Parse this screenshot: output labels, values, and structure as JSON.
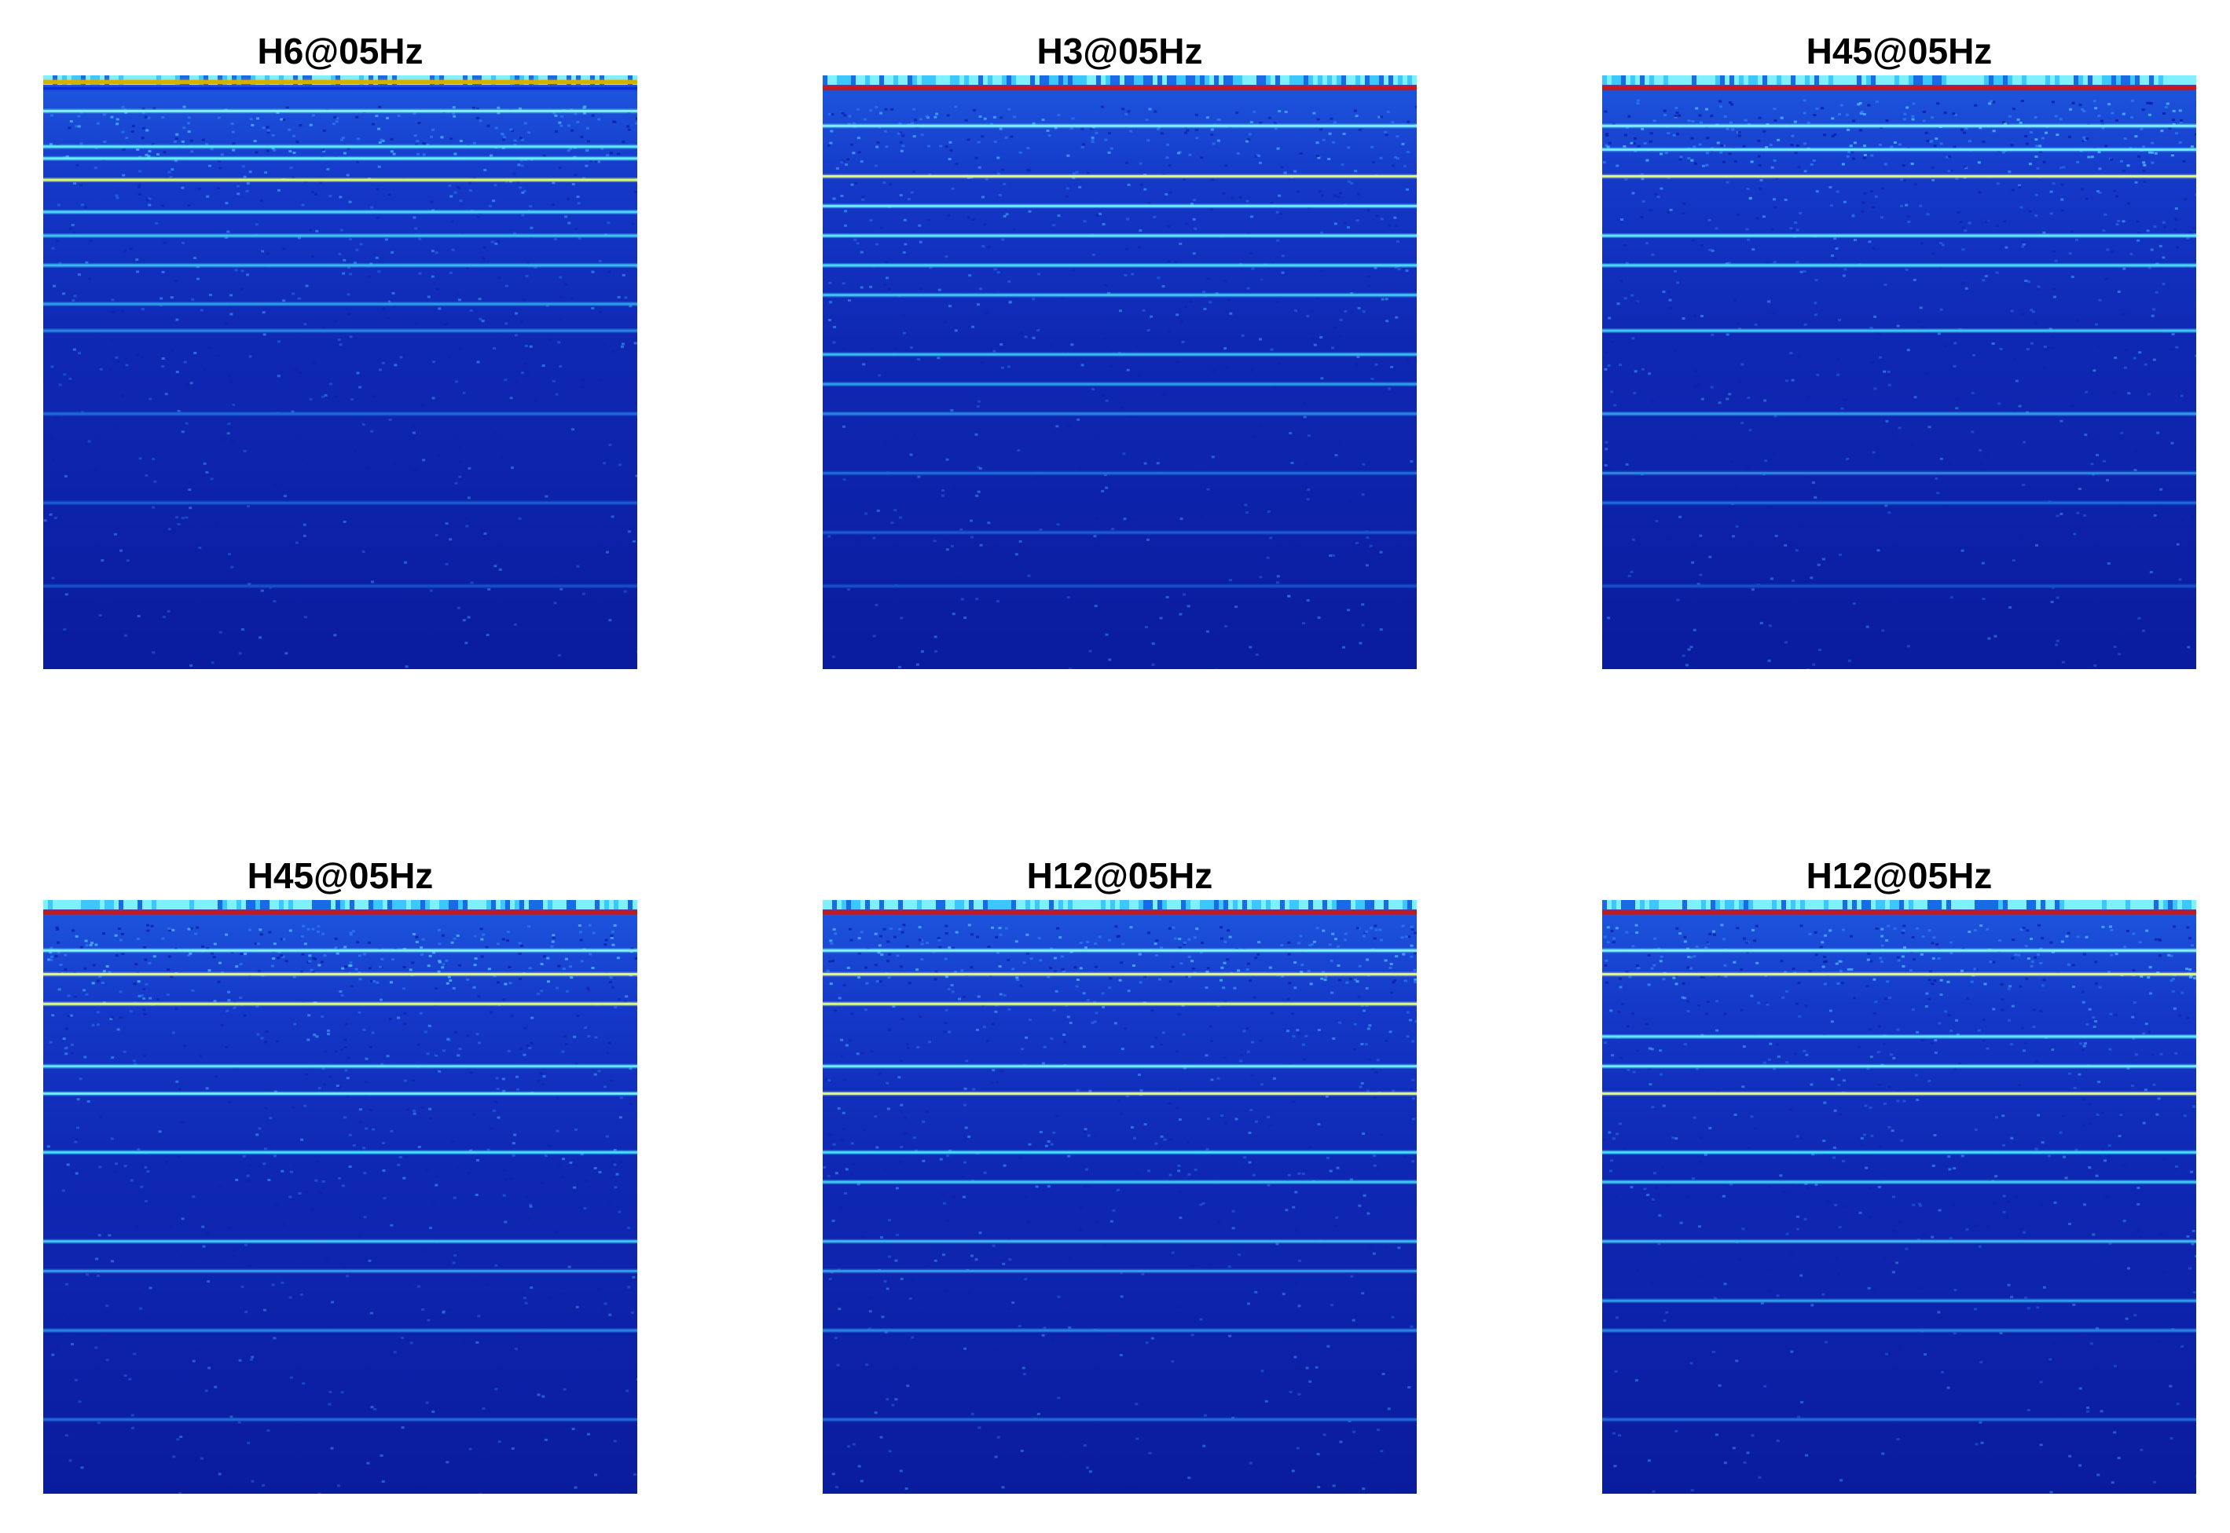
{
  "chart_data": [
    {
      "type": "heatmap",
      "title": "H6@05Hz",
      "lines": [
        [
          0.01,
          "#d4b000"
        ],
        [
          0.022,
          "#0a2ad8"
        ],
        [
          0.06,
          "#7ef0ff"
        ],
        [
          0.12,
          "#5ee8ff"
        ],
        [
          0.14,
          "#6aeeff"
        ],
        [
          0.176,
          "#d8f87a"
        ],
        [
          0.23,
          "#4ad8ff"
        ],
        [
          0.27,
          "#3ec4f0"
        ],
        [
          0.32,
          "#38b8ee"
        ],
        [
          0.385,
          "#2c9ae6"
        ],
        [
          0.43,
          "#2684e0"
        ],
        [
          0.57,
          "#1c6ad8"
        ],
        [
          0.72,
          "#1a5ad0"
        ],
        [
          0.86,
          "#1650c8"
        ]
      ],
      "speckle": [
        [
          0.05,
          0.14,
          0.9
        ],
        [
          0.14,
          0.23,
          0.45
        ],
        [
          0.23,
          0.5,
          0.3
        ],
        [
          0.5,
          1,
          0.16
        ]
      ]
    },
    {
      "type": "heatmap",
      "title": "H3@05Hz",
      "lines": [
        [
          0.02,
          "#c81818"
        ],
        [
          0.085,
          "#7ef0ff"
        ],
        [
          0.17,
          "#d8f87a"
        ],
        [
          0.22,
          "#6aeeff"
        ],
        [
          0.27,
          "#5ee8ff"
        ],
        [
          0.32,
          "#4ad8ff"
        ],
        [
          0.37,
          "#3ec4f0"
        ],
        [
          0.47,
          "#38b8ee"
        ],
        [
          0.52,
          "#2c9ae6"
        ],
        [
          0.57,
          "#2684e0"
        ],
        [
          0.67,
          "#1c6ad8"
        ],
        [
          0.77,
          "#1a5ad0"
        ],
        [
          0.86,
          "#1650c8"
        ]
      ],
      "speckle": [
        [
          0.05,
          0.14,
          0.75
        ],
        [
          0.14,
          0.25,
          0.4
        ],
        [
          0.25,
          0.5,
          0.28
        ],
        [
          0.5,
          1,
          0.16
        ]
      ]
    },
    {
      "type": "heatmap",
      "title": "H45@05Hz",
      "lines": [
        [
          0.02,
          "#c81818"
        ],
        [
          0.085,
          "#7ef0ff"
        ],
        [
          0.125,
          "#6aeeff"
        ],
        [
          0.17,
          "#d8f87a"
        ],
        [
          0.27,
          "#5ee8ff"
        ],
        [
          0.32,
          "#4ad8ff"
        ],
        [
          0.43,
          "#3ec4f0"
        ],
        [
          0.57,
          "#2c9ae6"
        ],
        [
          0.67,
          "#2684e0"
        ],
        [
          0.72,
          "#1c6ad8"
        ],
        [
          0.86,
          "#1650c8"
        ]
      ],
      "speckle": [
        [
          0.04,
          0.15,
          1.0
        ],
        [
          0.15,
          0.25,
          0.45
        ],
        [
          0.25,
          0.5,
          0.3
        ],
        [
          0.5,
          1,
          0.16
        ]
      ]
    },
    {
      "type": "heatmap",
      "title": "H45@05Hz",
      "lines": [
        [
          0.02,
          "#c81818"
        ],
        [
          0.085,
          "#7ef0ff"
        ],
        [
          0.125,
          "#d8f87a"
        ],
        [
          0.175,
          "#d8f87a"
        ],
        [
          0.28,
          "#5ee8ff"
        ],
        [
          0.326,
          "#6aeeff"
        ],
        [
          0.425,
          "#4ad8ff"
        ],
        [
          0.575,
          "#3ec4f0"
        ],
        [
          0.625,
          "#2c9ae6"
        ],
        [
          0.725,
          "#2684e0"
        ],
        [
          0.875,
          "#1c6ad8"
        ]
      ],
      "speckle": [
        [
          0.04,
          0.14,
          0.95
        ],
        [
          0.14,
          0.25,
          0.45
        ],
        [
          0.25,
          0.5,
          0.3
        ],
        [
          0.5,
          1,
          0.16
        ]
      ]
    },
    {
      "type": "heatmap",
      "title": "H12@05Hz",
      "lines": [
        [
          0.02,
          "#c81818"
        ],
        [
          0.085,
          "#7ef0ff"
        ],
        [
          0.125,
          "#d8f87a"
        ],
        [
          0.175,
          "#d8f87a"
        ],
        [
          0.28,
          "#6aeeff"
        ],
        [
          0.326,
          "#d8f87a"
        ],
        [
          0.425,
          "#4ad8ff"
        ],
        [
          0.475,
          "#3ec4f0"
        ],
        [
          0.575,
          "#38b8ee"
        ],
        [
          0.625,
          "#2c9ae6"
        ],
        [
          0.725,
          "#2684e0"
        ],
        [
          0.875,
          "#1c6ad8"
        ]
      ],
      "speckle": [
        [
          0.04,
          0.14,
          0.9
        ],
        [
          0.14,
          0.25,
          0.4
        ],
        [
          0.25,
          0.5,
          0.28
        ],
        [
          0.5,
          1,
          0.16
        ]
      ]
    },
    {
      "type": "heatmap",
      "title": "H12@05Hz",
      "lines": [
        [
          0.02,
          "#c81818"
        ],
        [
          0.085,
          "#7ef0ff"
        ],
        [
          0.125,
          "#d8f87a"
        ],
        [
          0.23,
          "#5ee8ff"
        ],
        [
          0.28,
          "#6aeeff"
        ],
        [
          0.326,
          "#d8f87a"
        ],
        [
          0.425,
          "#4ad8ff"
        ],
        [
          0.475,
          "#3ec4f0"
        ],
        [
          0.575,
          "#38b8ee"
        ],
        [
          0.675,
          "#2c9ae6"
        ],
        [
          0.725,
          "#2684e0"
        ],
        [
          0.875,
          "#1c6ad8"
        ]
      ],
      "speckle": [
        [
          0.04,
          0.14,
          0.9
        ],
        [
          0.14,
          0.25,
          0.4
        ],
        [
          0.25,
          0.5,
          0.28
        ],
        [
          0.5,
          1,
          0.16
        ]
      ]
    }
  ]
}
